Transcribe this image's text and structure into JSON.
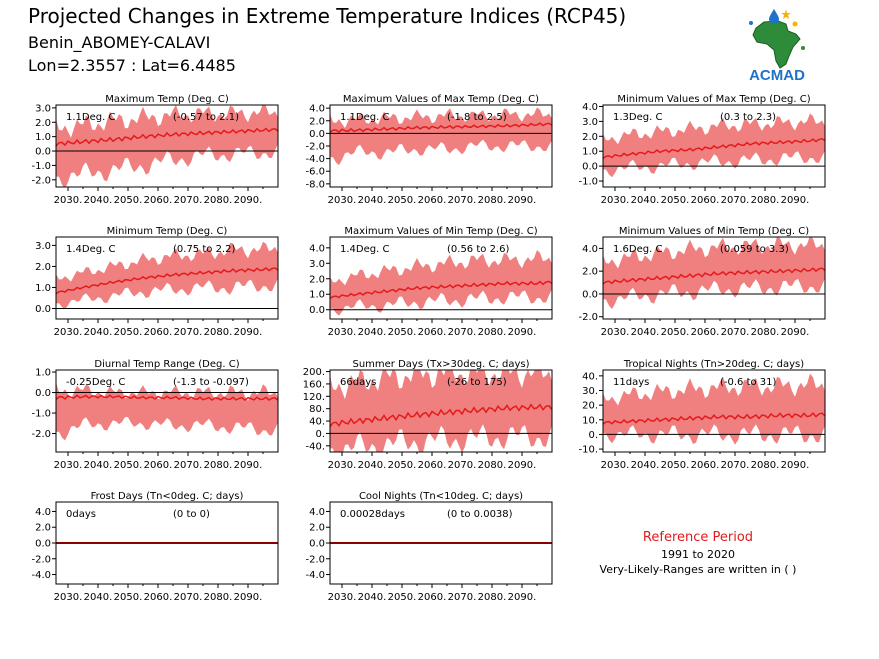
{
  "header": {
    "title": "Projected Changes in Extreme Temperature Indices (RCP45)",
    "location": "Benin_ABOMEY-CALAVI",
    "coordinates": "Lon=2.3557 : Lat=6.4485"
  },
  "logo": {
    "icon": "acmad-africa-logo-icon",
    "text": "ACMAD"
  },
  "reference": {
    "title": "Reference Period",
    "years": "1991 to 2020",
    "note": "Very-Likely-Ranges are written in ( )"
  },
  "colors": {
    "band": "#f08080",
    "line": "#e41a1c",
    "zero": "#000000",
    "frost_line": "#8b0000"
  },
  "chart_data": [
    {
      "type": "area",
      "title": "Maximum Temp (Deg. C)",
      "mean_label": "1.1Deg. C",
      "range_label": "(-0.57 to 2.1)",
      "x_ticks": [
        "2030.",
        "2040.",
        "2050.",
        "2060.",
        "2070.",
        "2080.",
        "2090."
      ],
      "xlim": [
        2026,
        2100
      ],
      "y_ticks": [
        3.0,
        2.0,
        1.0,
        0.0,
        -1.0,
        -2.0
      ],
      "y_tick_labels": [
        "3.0",
        "2.0",
        "1.0",
        "0.0",
        "-1.0",
        "-2.0"
      ],
      "ylim": [
        -2.5,
        3.2
      ],
      "series": [
        {
          "x": [
            2026,
            2035,
            2045,
            2055,
            2065,
            2075,
            2085,
            2095,
            2100
          ],
          "values": [
            0.5,
            0.65,
            0.8,
            1.0,
            1.15,
            1.25,
            1.35,
            1.45,
            1.5
          ]
        }
      ],
      "band": {
        "x": [
          2026,
          2035,
          2045,
          2055,
          2065,
          2075,
          2085,
          2095,
          2100
        ],
        "low": [
          -1.9,
          -1.6,
          -1.3,
          -1.0,
          -0.6,
          -0.3,
          -0.2,
          -0.1,
          0.0
        ],
        "high": [
          1.6,
          1.8,
          2.1,
          2.3,
          2.5,
          2.6,
          2.6,
          2.7,
          2.7
        ]
      }
    },
    {
      "type": "area",
      "title": "Maximum Values of Max Temp (Deg. C)",
      "mean_label": "1.1Deg. C",
      "range_label": "(-1.8 to 2.5)",
      "x_ticks": [
        "2030.",
        "2040.",
        "2050.",
        "2060.",
        "2070.",
        "2080.",
        "2090."
      ],
      "xlim": [
        2026,
        2100
      ],
      "y_ticks": [
        4.0,
        2.0,
        0.0,
        -2.0,
        -4.0,
        -6.0,
        -8.0
      ],
      "y_tick_labels": [
        "4.0",
        "2.0",
        "0.0",
        "-2.0",
        "-4.0",
        "-6.0",
        "-8.0"
      ],
      "ylim": [
        -8.5,
        4.5
      ],
      "series": [
        {
          "x": [
            2026,
            2035,
            2045,
            2055,
            2065,
            2075,
            2085,
            2095,
            2100
          ],
          "values": [
            0.4,
            0.5,
            0.7,
            0.9,
            1.0,
            1.1,
            1.2,
            1.4,
            1.5
          ]
        }
      ],
      "band": {
        "x": [
          2026,
          2035,
          2045,
          2055,
          2065,
          2075,
          2085,
          2095,
          2100
        ],
        "low": [
          -4.0,
          -3.0,
          -3.0,
          -2.5,
          -2.5,
          -2.0,
          -2.0,
          -2.0,
          -2.0
        ],
        "high": [
          2.0,
          2.2,
          2.4,
          2.6,
          2.8,
          2.8,
          3.0,
          3.0,
          3.0
        ]
      }
    },
    {
      "type": "area",
      "title": "Minimum Values of Max Temp (Deg. C)",
      "mean_label": "1.3Deg. C",
      "range_label": "(0.3 to 2.3)",
      "x_ticks": [
        "2030.",
        "2040.",
        "2050.",
        "2060.",
        "2070.",
        "2080.",
        "2090."
      ],
      "xlim": [
        2026,
        2100
      ],
      "y_ticks": [
        4.0,
        3.0,
        2.0,
        1.0,
        0.0,
        -1.0
      ],
      "y_tick_labels": [
        "4.0",
        "3.0",
        "2.0",
        "1.0",
        "0.0",
        "-1.0"
      ],
      "ylim": [
        -1.4,
        4.1
      ],
      "series": [
        {
          "x": [
            2026,
            2035,
            2045,
            2055,
            2065,
            2075,
            2085,
            2095,
            2100
          ],
          "values": [
            0.6,
            0.8,
            1.0,
            1.1,
            1.3,
            1.5,
            1.6,
            1.7,
            1.8
          ]
        }
      ],
      "band": {
        "x": [
          2026,
          2035,
          2045,
          2055,
          2065,
          2075,
          2085,
          2095,
          2100
        ],
        "low": [
          -0.3,
          -0.1,
          0.0,
          0.2,
          0.3,
          0.4,
          0.5,
          0.6,
          0.6
        ],
        "high": [
          1.8,
          2.1,
          2.3,
          2.5,
          2.7,
          2.8,
          2.9,
          3.0,
          3.0
        ]
      }
    },
    {
      "type": "area",
      "title": "Minimum Temp (Deg. C)",
      "mean_label": "1.4Deg. C",
      "range_label": "(0.75 to 2.2)",
      "x_ticks": [
        "2030.",
        "2040.",
        "2050.",
        "2060.",
        "2070.",
        "2080.",
        "2090."
      ],
      "xlim": [
        2026,
        2100
      ],
      "y_ticks": [
        3.0,
        2.0,
        1.0,
        0.0
      ],
      "y_tick_labels": [
        "3.0",
        "2.0",
        "1.0",
        "0.0"
      ],
      "ylim": [
        -0.5,
        3.4
      ],
      "series": [
        {
          "x": [
            2026,
            2035,
            2045,
            2055,
            2065,
            2075,
            2085,
            2095,
            2100
          ],
          "values": [
            0.75,
            1.0,
            1.25,
            1.45,
            1.6,
            1.7,
            1.8,
            1.85,
            1.9
          ]
        }
      ],
      "band": {
        "x": [
          2026,
          2035,
          2045,
          2055,
          2065,
          2075,
          2085,
          2095,
          2100
        ],
        "low": [
          0.2,
          0.4,
          0.6,
          0.8,
          0.9,
          1.0,
          1.0,
          1.1,
          1.1
        ],
        "high": [
          1.4,
          1.7,
          2.0,
          2.3,
          2.5,
          2.6,
          2.8,
          2.8,
          2.9
        ]
      }
    },
    {
      "type": "area",
      "title": "Maximum Values of Min Temp (Deg. C)",
      "mean_label": "1.4Deg. C",
      "range_label": "(0.56 to 2.6)",
      "x_ticks": [
        "2030.",
        "2040.",
        "2050.",
        "2060.",
        "2070.",
        "2080.",
        "2090."
      ],
      "xlim": [
        2026,
        2100
      ],
      "y_ticks": [
        4.0,
        3.0,
        2.0,
        1.0,
        0.0
      ],
      "y_tick_labels": [
        "4.0",
        "3.0",
        "2.0",
        "1.0",
        "0.0"
      ],
      "ylim": [
        -0.6,
        4.7
      ],
      "series": [
        {
          "x": [
            2026,
            2035,
            2045,
            2055,
            2065,
            2075,
            2085,
            2095,
            2100
          ],
          "values": [
            0.8,
            1.0,
            1.2,
            1.4,
            1.5,
            1.6,
            1.7,
            1.7,
            1.8
          ]
        }
      ],
      "band": {
        "x": [
          2026,
          2035,
          2045,
          2055,
          2065,
          2075,
          2085,
          2095,
          2100
        ],
        "low": [
          0.0,
          0.2,
          0.3,
          0.5,
          0.6,
          0.7,
          0.8,
          0.8,
          0.9
        ],
        "high": [
          1.8,
          2.2,
          2.5,
          2.8,
          3.0,
          3.2,
          3.2,
          3.3,
          3.3
        ]
      }
    },
    {
      "type": "area",
      "title": "Minimum Values of Min Temp (Deg. C)",
      "mean_label": "1.6Deg. C",
      "range_label": "(0.059 to 3.3)",
      "x_ticks": [
        "2030.",
        "2040.",
        "2050.",
        "2060.",
        "2070.",
        "2080.",
        "2090."
      ],
      "xlim": [
        2026,
        2100
      ],
      "y_ticks": [
        4.0,
        2.0,
        0.0,
        -2.0
      ],
      "y_tick_labels": [
        "4.0",
        "2.0",
        "0.0",
        "-2.0"
      ],
      "ylim": [
        -2.2,
        5.0
      ],
      "series": [
        {
          "x": [
            2026,
            2035,
            2045,
            2055,
            2065,
            2075,
            2085,
            2095,
            2100
          ],
          "values": [
            1.0,
            1.2,
            1.4,
            1.6,
            1.8,
            1.9,
            2.0,
            2.1,
            2.2
          ]
        }
      ],
      "band": {
        "x": [
          2026,
          2035,
          2045,
          2055,
          2065,
          2075,
          2085,
          2095,
          2100
        ],
        "low": [
          -0.6,
          -0.3,
          0.0,
          0.2,
          0.4,
          0.5,
          0.6,
          0.7,
          0.7
        ],
        "high": [
          2.8,
          3.2,
          3.6,
          3.9,
          4.1,
          4.2,
          4.3,
          4.3,
          4.3
        ]
      }
    },
    {
      "type": "area",
      "title": "Diurnal Temp Range (Deg. C)",
      "mean_label": "-0.25Deg. C",
      "range_label": "(-1.3 to -0.097)",
      "x_ticks": [
        "2030.",
        "2040.",
        "2050.",
        "2060.",
        "2070.",
        "2080.",
        "2090."
      ],
      "xlim": [
        2026,
        2100
      ],
      "y_ticks": [
        1.0,
        0.0,
        -1.0,
        -2.0
      ],
      "y_tick_labels": [
        "1.0",
        "0.0",
        "-1.0",
        "-2.0"
      ],
      "ylim": [
        -2.9,
        1.1
      ],
      "series": [
        {
          "x": [
            2026,
            2035,
            2045,
            2055,
            2065,
            2075,
            2085,
            2095,
            2100
          ],
          "values": [
            -0.25,
            -0.2,
            -0.2,
            -0.25,
            -0.25,
            -0.3,
            -0.3,
            -0.3,
            -0.3
          ]
        }
      ],
      "band": {
        "x": [
          2026,
          2035,
          2045,
          2055,
          2065,
          2075,
          2085,
          2095,
          2100
        ],
        "low": [
          -2.0,
          -1.6,
          -1.5,
          -1.5,
          -1.6,
          -1.6,
          -1.7,
          -1.8,
          -1.8
        ],
        "high": [
          0.1,
          0.1,
          0.0,
          0.0,
          0.0,
          0.0,
          0.0,
          0.0,
          0.0
        ]
      }
    },
    {
      "type": "area",
      "title": "Summer Days (Tx>30deg. C; days)",
      "mean_label": "66days",
      "range_label": "(-26 to 175)",
      "x_ticks": [
        "2030.",
        "2040.",
        "2050.",
        "2060.",
        "2070.",
        "2080.",
        "2090."
      ],
      "xlim": [
        2026,
        2100
      ],
      "y_ticks": [
        200,
        160,
        120,
        80,
        40,
        0,
        -40
      ],
      "y_tick_labels": [
        "200.",
        "160.",
        "120.",
        "80.",
        "40.",
        "0.",
        "-40."
      ],
      "ylim": [
        -60,
        205
      ],
      "series": [
        {
          "x": [
            2026,
            2035,
            2045,
            2055,
            2065,
            2075,
            2085,
            2095,
            2100
          ],
          "values": [
            30,
            40,
            50,
            60,
            68,
            75,
            82,
            85,
            85
          ]
        }
      ],
      "band": {
        "x": [
          2026,
          2035,
          2045,
          2055,
          2065,
          2075,
          2085,
          2095,
          2100
        ],
        "low": [
          -55,
          -45,
          -35,
          -25,
          -20,
          -15,
          -10,
          -10,
          -10
        ],
        "high": [
          150,
          165,
          180,
          190,
          195,
          195,
          195,
          195,
          195
        ]
      }
    },
    {
      "type": "area",
      "title": "Tropical Nights (Tn>20deg. C; days)",
      "mean_label": "11days",
      "range_label": "(-0.6 to 31)",
      "x_ticks": [
        "2030.",
        "2040.",
        "2050.",
        "2060.",
        "2070.",
        "2080.",
        "2090."
      ],
      "xlim": [
        2026,
        2100
      ],
      "y_ticks": [
        40,
        30,
        20,
        10,
        0,
        -10
      ],
      "y_tick_labels": [
        "40.",
        "30.",
        "20.",
        "10.",
        "0.",
        "-10."
      ],
      "ylim": [
        -12,
        44
      ],
      "series": [
        {
          "x": [
            2026,
            2035,
            2045,
            2055,
            2065,
            2075,
            2085,
            2095,
            2100
          ],
          "values": [
            8,
            9,
            10,
            11,
            12,
            12,
            13,
            13,
            14
          ]
        }
      ],
      "band": {
        "x": [
          2026,
          2035,
          2045,
          2055,
          2065,
          2075,
          2085,
          2095,
          2100
        ],
        "low": [
          0,
          0,
          0,
          0,
          0,
          0,
          0,
          0,
          0
        ],
        "high": [
          24,
          27,
          29,
          31,
          32,
          33,
          33,
          34,
          34
        ]
      }
    },
    {
      "type": "area",
      "title": "Frost Days (Tn<0deg. C; days)",
      "mean_label": "0days",
      "range_label": "(0 to 0)",
      "x_ticks": [
        "2030.",
        "2040.",
        "2050.",
        "2060.",
        "2070.",
        "2080.",
        "2090."
      ],
      "xlim": [
        2026,
        2100
      ],
      "y_ticks": [
        4.0,
        2.0,
        0.0,
        -2.0,
        -4.0
      ],
      "y_tick_labels": [
        "4.0",
        "2.0",
        "0.0",
        "-2.0",
        "-4.0"
      ],
      "ylim": [
        -5.2,
        5.2
      ],
      "series": [
        {
          "x": [
            2026,
            2100
          ],
          "values": [
            0,
            0
          ]
        }
      ],
      "band": {
        "x": [
          2026,
          2100
        ],
        "low": [
          0,
          0
        ],
        "high": [
          0,
          0
        ]
      }
    },
    {
      "type": "area",
      "title": "Cool Nights (Tn<10deg. C; days)",
      "mean_label": "0.00028days",
      "range_label": "(0 to 0.0038)",
      "x_ticks": [
        "2030.",
        "2040.",
        "2050.",
        "2060.",
        "2070.",
        "2080.",
        "2090."
      ],
      "xlim": [
        2026,
        2100
      ],
      "y_ticks": [
        4.0,
        2.0,
        0.0,
        -2.0,
        -4.0
      ],
      "y_tick_labels": [
        "4.0",
        "2.0",
        "0.0",
        "-2.0",
        "-4.0"
      ],
      "ylim": [
        -5.2,
        5.2
      ],
      "series": [
        {
          "x": [
            2026,
            2100
          ],
          "values": [
            0,
            0
          ]
        }
      ],
      "band": {
        "x": [
          2026,
          2100
        ],
        "low": [
          0,
          0
        ],
        "high": [
          0,
          0
        ]
      }
    }
  ]
}
